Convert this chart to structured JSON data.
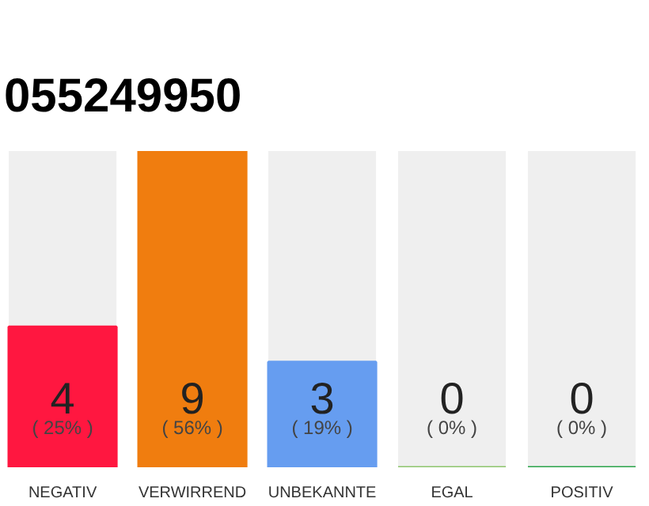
{
  "chart_data": {
    "type": "bar",
    "title": "055249950",
    "categories": [
      "NEGATIV",
      "VERWIRREND",
      "UNBEKANNTE",
      "EGAL",
      "POSITIV"
    ],
    "values": [
      4,
      9,
      3,
      0,
      0
    ],
    "colors": [
      "#ff1740",
      "#f07d0f",
      "#669df0",
      "#8dc56c",
      "#2aa44a"
    ],
    "ylim": [
      0,
      9
    ],
    "tick_labels": "x",
    "grid": false,
    "data_labels": true,
    "annotations": [
      "( 25% )",
      "( 56% )",
      "( 19% )",
      "( 0% )",
      "( 0% )"
    ]
  }
}
